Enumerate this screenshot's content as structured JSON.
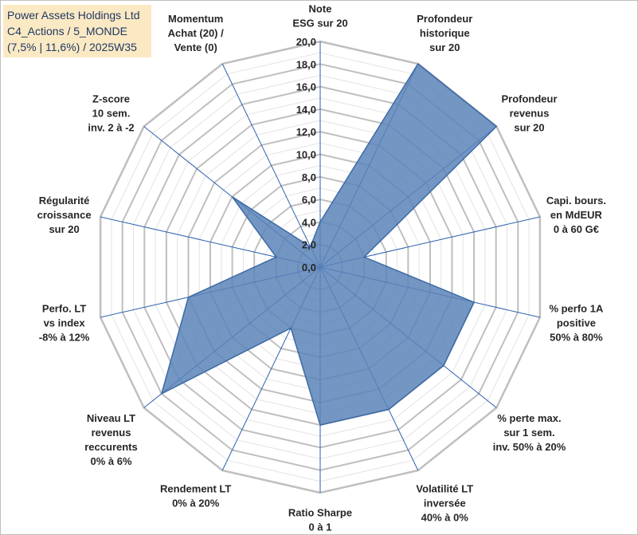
{
  "title_lines": [
    "Power Assets Holdings Ltd",
    "C4_Actions / 5_MONDE",
    "(7,5% | 11,6%) / 2025W35"
  ],
  "chart_data": {
    "type": "radar",
    "rmin": 0,
    "rmax": 20,
    "tick_labels": [
      "0,0",
      "2,0",
      "4,0",
      "6,0",
      "8,0",
      "10,0",
      "12,0",
      "14,0",
      "16,0",
      "18,0",
      "20,0"
    ],
    "axes": [
      {
        "label": [
          "Note",
          "ESG sur 20"
        ],
        "value": 4
      },
      {
        "label": [
          "Profondeur",
          "historique",
          "sur 20"
        ],
        "value": 20
      },
      {
        "label": [
          "Profondeur",
          "revenus",
          "sur 20"
        ],
        "value": 20
      },
      {
        "label": [
          "Capi. bours.",
          "en MdEUR",
          "0 à 60 G€"
        ],
        "value": 4
      },
      {
        "label": [
          "% perfo 1A",
          "positive",
          "50% à 80%"
        ],
        "value": 14
      },
      {
        "label": [
          "% perte max.",
          "sur 1 sem.",
          "inv. 50% à 20%"
        ],
        "value": 14
      },
      {
        "label": [
          "Volatilité LT",
          "inversée",
          "40% à 0%"
        ],
        "value": 14
      },
      {
        "label": [
          "Ratio Sharpe",
          "0 à 1"
        ],
        "value": 14
      },
      {
        "label": [
          "Rendement LT",
          "0% à 20%"
        ],
        "value": 6
      },
      {
        "label": [
          "Niveau LT",
          "revenus",
          "reccurents",
          "0% à 6%"
        ],
        "value": 18
      },
      {
        "label": [
          "Perfo. LT",
          "vs index",
          "-8% à 12%"
        ],
        "value": 12
      },
      {
        "label": [
          "Régularité",
          "croissance",
          "sur 20"
        ],
        "value": 4
      },
      {
        "label": [
          "Z-score",
          "10 sem.",
          "inv. 2 à -2"
        ],
        "value": 10
      },
      {
        "label": [
          "Momentum",
          "Achat (20) /",
          "Vente (0)"
        ],
        "value": 2
      }
    ],
    "grid": true,
    "colors": {
      "fill": "#5b84b8",
      "stroke": "#3d6aa6",
      "grid": "#bfbfbf",
      "spoke": "#2e62b0"
    }
  }
}
